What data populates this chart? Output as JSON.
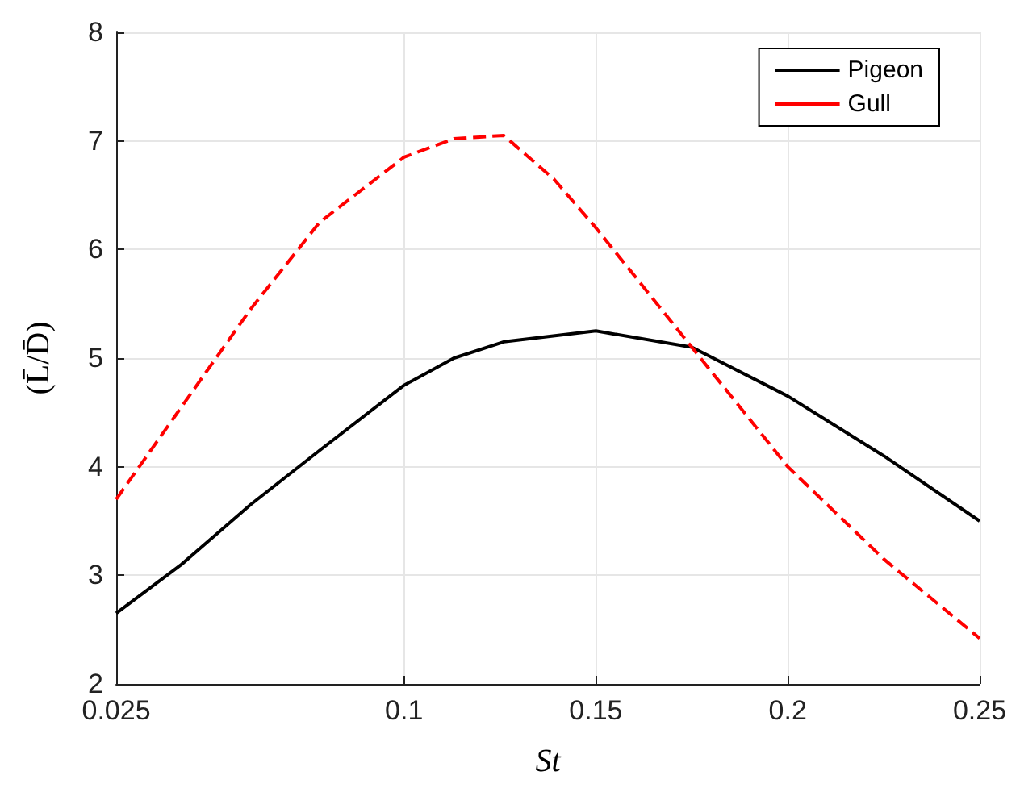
{
  "chart_data": {
    "type": "line",
    "xlabel": "St",
    "ylabel": "(L̄/D̄)",
    "xlim": [
      0.025,
      0.25
    ],
    "xticks": [
      0.025,
      0.1,
      0.15,
      0.2,
      0.25
    ],
    "ylim": [
      2,
      8
    ],
    "yticks": [
      2,
      3,
      4,
      5,
      6,
      7,
      8
    ],
    "grid": true,
    "legend": "top right",
    "marker": "none",
    "series": [
      {
        "name": "Pigeon",
        "color": "#000000",
        "line_style": "solid",
        "x": [
          0.025,
          0.042,
          0.06,
          0.078,
          0.1,
          0.113,
          0.126,
          0.15,
          0.175,
          0.2,
          0.225,
          0.25
        ],
        "values": [
          2.65,
          3.1,
          3.65,
          4.15,
          4.75,
          5.0,
          5.15,
          5.25,
          5.1,
          4.65,
          4.1,
          3.5
        ]
      },
      {
        "name": "Gull",
        "color": "#ff0000",
        "line_style": "dashed",
        "x": [
          0.025,
          0.042,
          0.06,
          0.078,
          0.1,
          0.113,
          0.126,
          0.139,
          0.15,
          0.175,
          0.2,
          0.225,
          0.25
        ],
        "values": [
          3.7,
          4.55,
          5.45,
          6.25,
          6.85,
          7.02,
          7.05,
          6.65,
          6.2,
          5.1,
          4.0,
          3.15,
          2.42
        ]
      }
    ]
  }
}
